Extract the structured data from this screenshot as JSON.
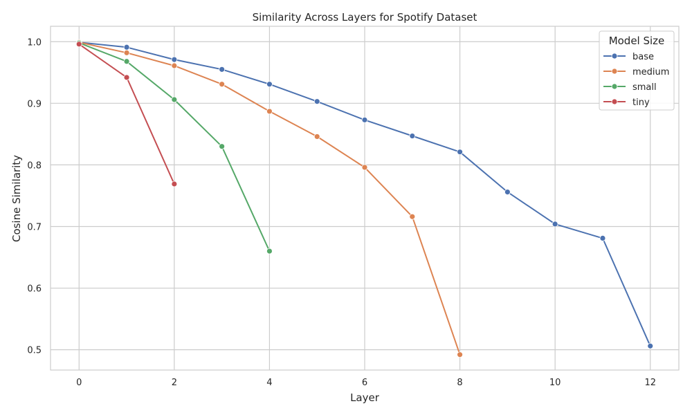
{
  "chart_data": {
    "type": "line",
    "title": "Similarity Across Layers for Spotify Dataset",
    "xlabel": "Layer",
    "ylabel": "Cosine Similarity",
    "xlim": [
      -0.6,
      12.6
    ],
    "ylim": [
      0.467,
      1.025
    ],
    "xticks": [
      0,
      2,
      4,
      6,
      8,
      10,
      12
    ],
    "yticks": [
      0.5,
      0.6,
      0.7,
      0.8,
      0.9,
      1.0
    ],
    "grid": true,
    "legend": {
      "title": "Model Size",
      "position": "top-right"
    },
    "series": [
      {
        "name": "base",
        "color": "#4c72b0",
        "x": [
          0,
          1,
          2,
          3,
          4,
          5,
          6,
          7,
          8,
          9,
          10,
          11,
          12
        ],
        "y": [
          0.999,
          0.991,
          0.971,
          0.955,
          0.931,
          0.903,
          0.873,
          0.847,
          0.821,
          0.756,
          0.704,
          0.681,
          0.506
        ]
      },
      {
        "name": "medium",
        "color": "#dd8452",
        "x": [
          0,
          1,
          2,
          3,
          4,
          5,
          6,
          7,
          8
        ],
        "y": [
          0.999,
          0.982,
          0.961,
          0.931,
          0.887,
          0.846,
          0.796,
          0.716,
          0.492
        ]
      },
      {
        "name": "small",
        "color": "#55a868",
        "x": [
          0,
          1,
          2,
          3,
          4
        ],
        "y": [
          0.998,
          0.968,
          0.906,
          0.83,
          0.66
        ]
      },
      {
        "name": "tiny",
        "color": "#c44e52",
        "x": [
          0,
          1,
          2
        ],
        "y": [
          0.996,
          0.942,
          0.769
        ]
      }
    ]
  }
}
